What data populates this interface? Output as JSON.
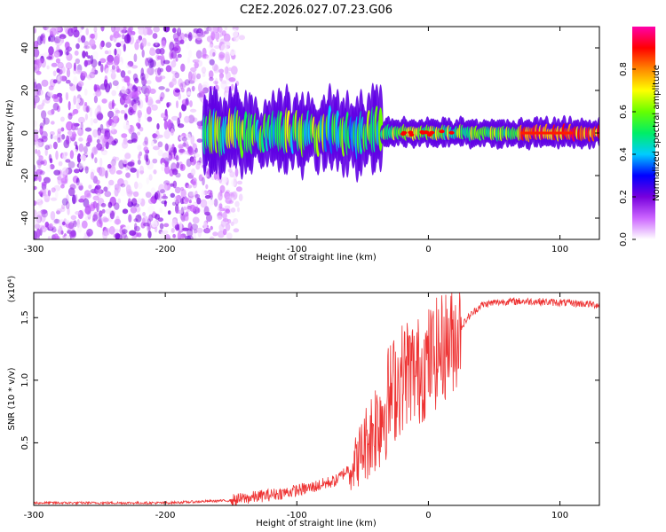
{
  "title": "C2E2.2026.027.07.23.G06",
  "chart_data": [
    {
      "type": "heatmap",
      "title": "C2E2.2026.027.07.23.G06",
      "xlabel": "Height of straight line (km)",
      "ylabel": "Frequency (Hz)",
      "xlim": [
        -300,
        130
      ],
      "ylim": [
        -50,
        50
      ],
      "xticks": [
        -300,
        -200,
        -100,
        0,
        100
      ],
      "yticks": [
        -40,
        -20,
        0,
        20,
        40
      ],
      "colorbar": {
        "label": "Normalized spectral amplitude",
        "range": [
          0.0,
          1.0
        ],
        "ticks": [
          "0.0",
          "0.2",
          "0.4",
          "0.6",
          "0.8"
        ],
        "colors": [
          "#ffffff",
          "#cc66ff",
          "#7700dd",
          "#0000ff",
          "#00ccff",
          "#00ee66",
          "#66ff00",
          "#ffff00",
          "#ff8800",
          "#ff0000",
          "#ff00aa"
        ]
      },
      "regions": [
        {
          "name": "noise",
          "x_range": [
            -300,
            -148
          ],
          "freq_range": [
            -50,
            50
          ],
          "amplitude_range": [
            0.0,
            0.15
          ]
        },
        {
          "name": "signal",
          "x_range": [
            -170,
            130
          ],
          "center_freq_hz": 0,
          "bandwidth_hz": 6,
          "amplitude_range": [
            0.2,
            0.95
          ]
        }
      ]
    },
    {
      "type": "line",
      "xlabel": "Height of straight line (km)",
      "ylabel": "SNR (10 * v/v)",
      "y_multiplier": "(x10⁴)",
      "xlim": [
        -300,
        130
      ],
      "ylim": [
        0,
        1.7
      ],
      "xticks": [
        -300,
        -200,
        -100,
        0,
        100
      ],
      "yticks": [
        0.5,
        1.0,
        1.5
      ],
      "series": [
        {
          "name": "SNR",
          "color": "#ee3333",
          "x": [
            -300,
            -250,
            -200,
            -150,
            -130,
            -110,
            -90,
            -70,
            -55,
            -45,
            -35,
            -25,
            -15,
            -10,
            0,
            10,
            20,
            30,
            40,
            50,
            60,
            80,
            100,
            120,
            130
          ],
          "y": [
            0.02,
            0.02,
            0.02,
            0.04,
            0.07,
            0.1,
            0.14,
            0.2,
            0.35,
            0.55,
            0.75,
            0.95,
            1.1,
            1.05,
            1.15,
            1.25,
            1.35,
            1.5,
            1.6,
            1.62,
            1.63,
            1.63,
            1.62,
            1.61,
            1.6
          ]
        }
      ]
    }
  ]
}
